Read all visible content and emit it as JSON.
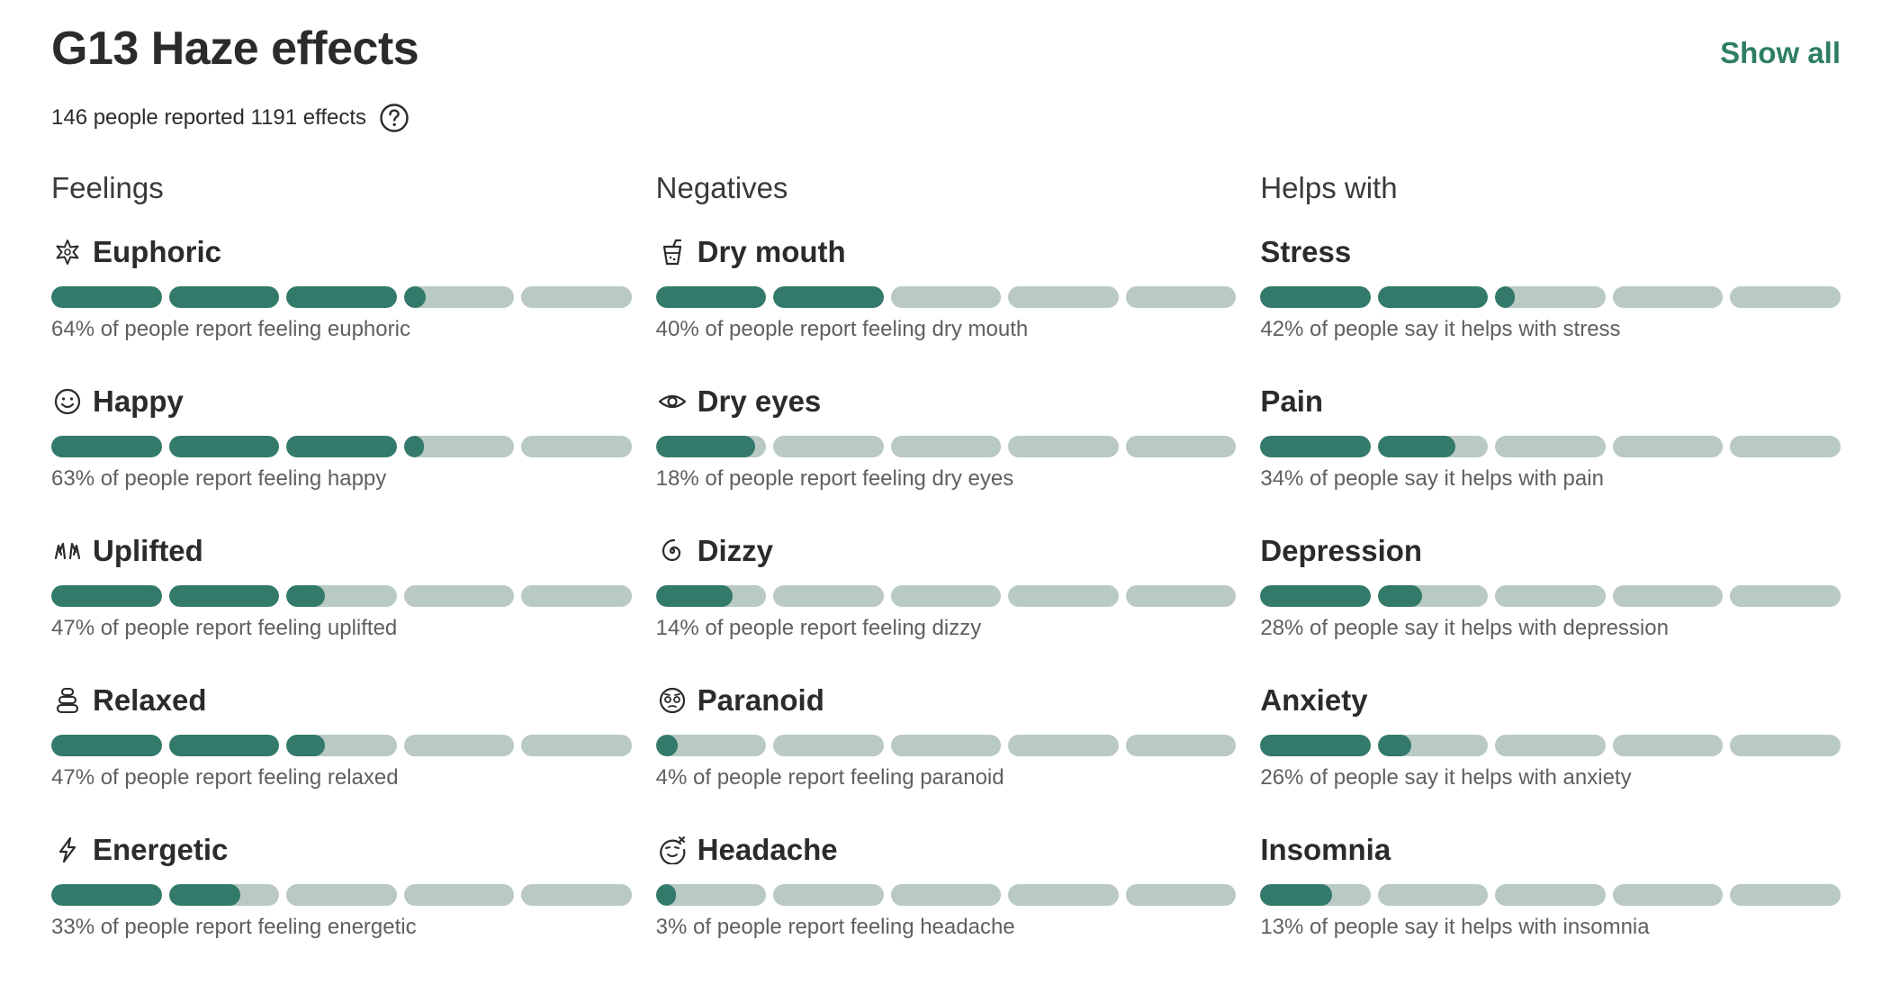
{
  "page": {
    "title": "G13 Haze effects",
    "show_all": "Show all",
    "summary": "146 people reported 1191 effects"
  },
  "colors": {
    "fill": "#337a6a",
    "track": "#b9c9c4",
    "accent": "#2e7d65"
  },
  "columns": [
    {
      "heading": "Feelings",
      "items": [
        {
          "name": "Euphoric",
          "icon": "euphoric-star-icon",
          "percent": 64,
          "desc": "64% of people report feeling euphoric"
        },
        {
          "name": "Happy",
          "icon": "smiley-icon",
          "percent": 63,
          "desc": "63% of people report feeling happy"
        },
        {
          "name": "Uplifted",
          "icon": "raised-hands-icon",
          "percent": 47,
          "desc": "47% of people report feeling uplifted"
        },
        {
          "name": "Relaxed",
          "icon": "stacked-stones-icon",
          "percent": 47,
          "desc": "47% of people report feeling relaxed"
        },
        {
          "name": "Energetic",
          "icon": "lightning-icon",
          "percent": 33,
          "desc": "33% of people report feeling energetic"
        }
      ]
    },
    {
      "heading": "Negatives",
      "items": [
        {
          "name": "Dry mouth",
          "icon": "drink-cup-icon",
          "percent": 40,
          "desc": "40% of people report feeling dry mouth"
        },
        {
          "name": "Dry eyes",
          "icon": "eye-icon",
          "percent": 18,
          "desc": "18% of people report feeling dry eyes"
        },
        {
          "name": "Dizzy",
          "icon": "spiral-icon",
          "percent": 14,
          "desc": "14% of people report feeling dizzy"
        },
        {
          "name": "Paranoid",
          "icon": "anxious-face-icon",
          "percent": 4,
          "desc": "4% of people report feeling paranoid"
        },
        {
          "name": "Headache",
          "icon": "headache-face-icon",
          "percent": 3,
          "desc": "3% of people report feeling headache"
        }
      ]
    },
    {
      "heading": "Helps with",
      "items": [
        {
          "name": "Stress",
          "icon": "",
          "percent": 42,
          "desc": "42% of people say it helps with stress"
        },
        {
          "name": "Pain",
          "icon": "",
          "percent": 34,
          "desc": "34% of people say it helps with pain"
        },
        {
          "name": "Depression",
          "icon": "",
          "percent": 28,
          "desc": "28% of people say it helps with depression"
        },
        {
          "name": "Anxiety",
          "icon": "",
          "percent": 26,
          "desc": "26% of people say it helps with anxiety"
        },
        {
          "name": "Insomnia",
          "icon": "",
          "percent": 13,
          "desc": "13% of people say it helps with insomnia"
        }
      ]
    }
  ]
}
